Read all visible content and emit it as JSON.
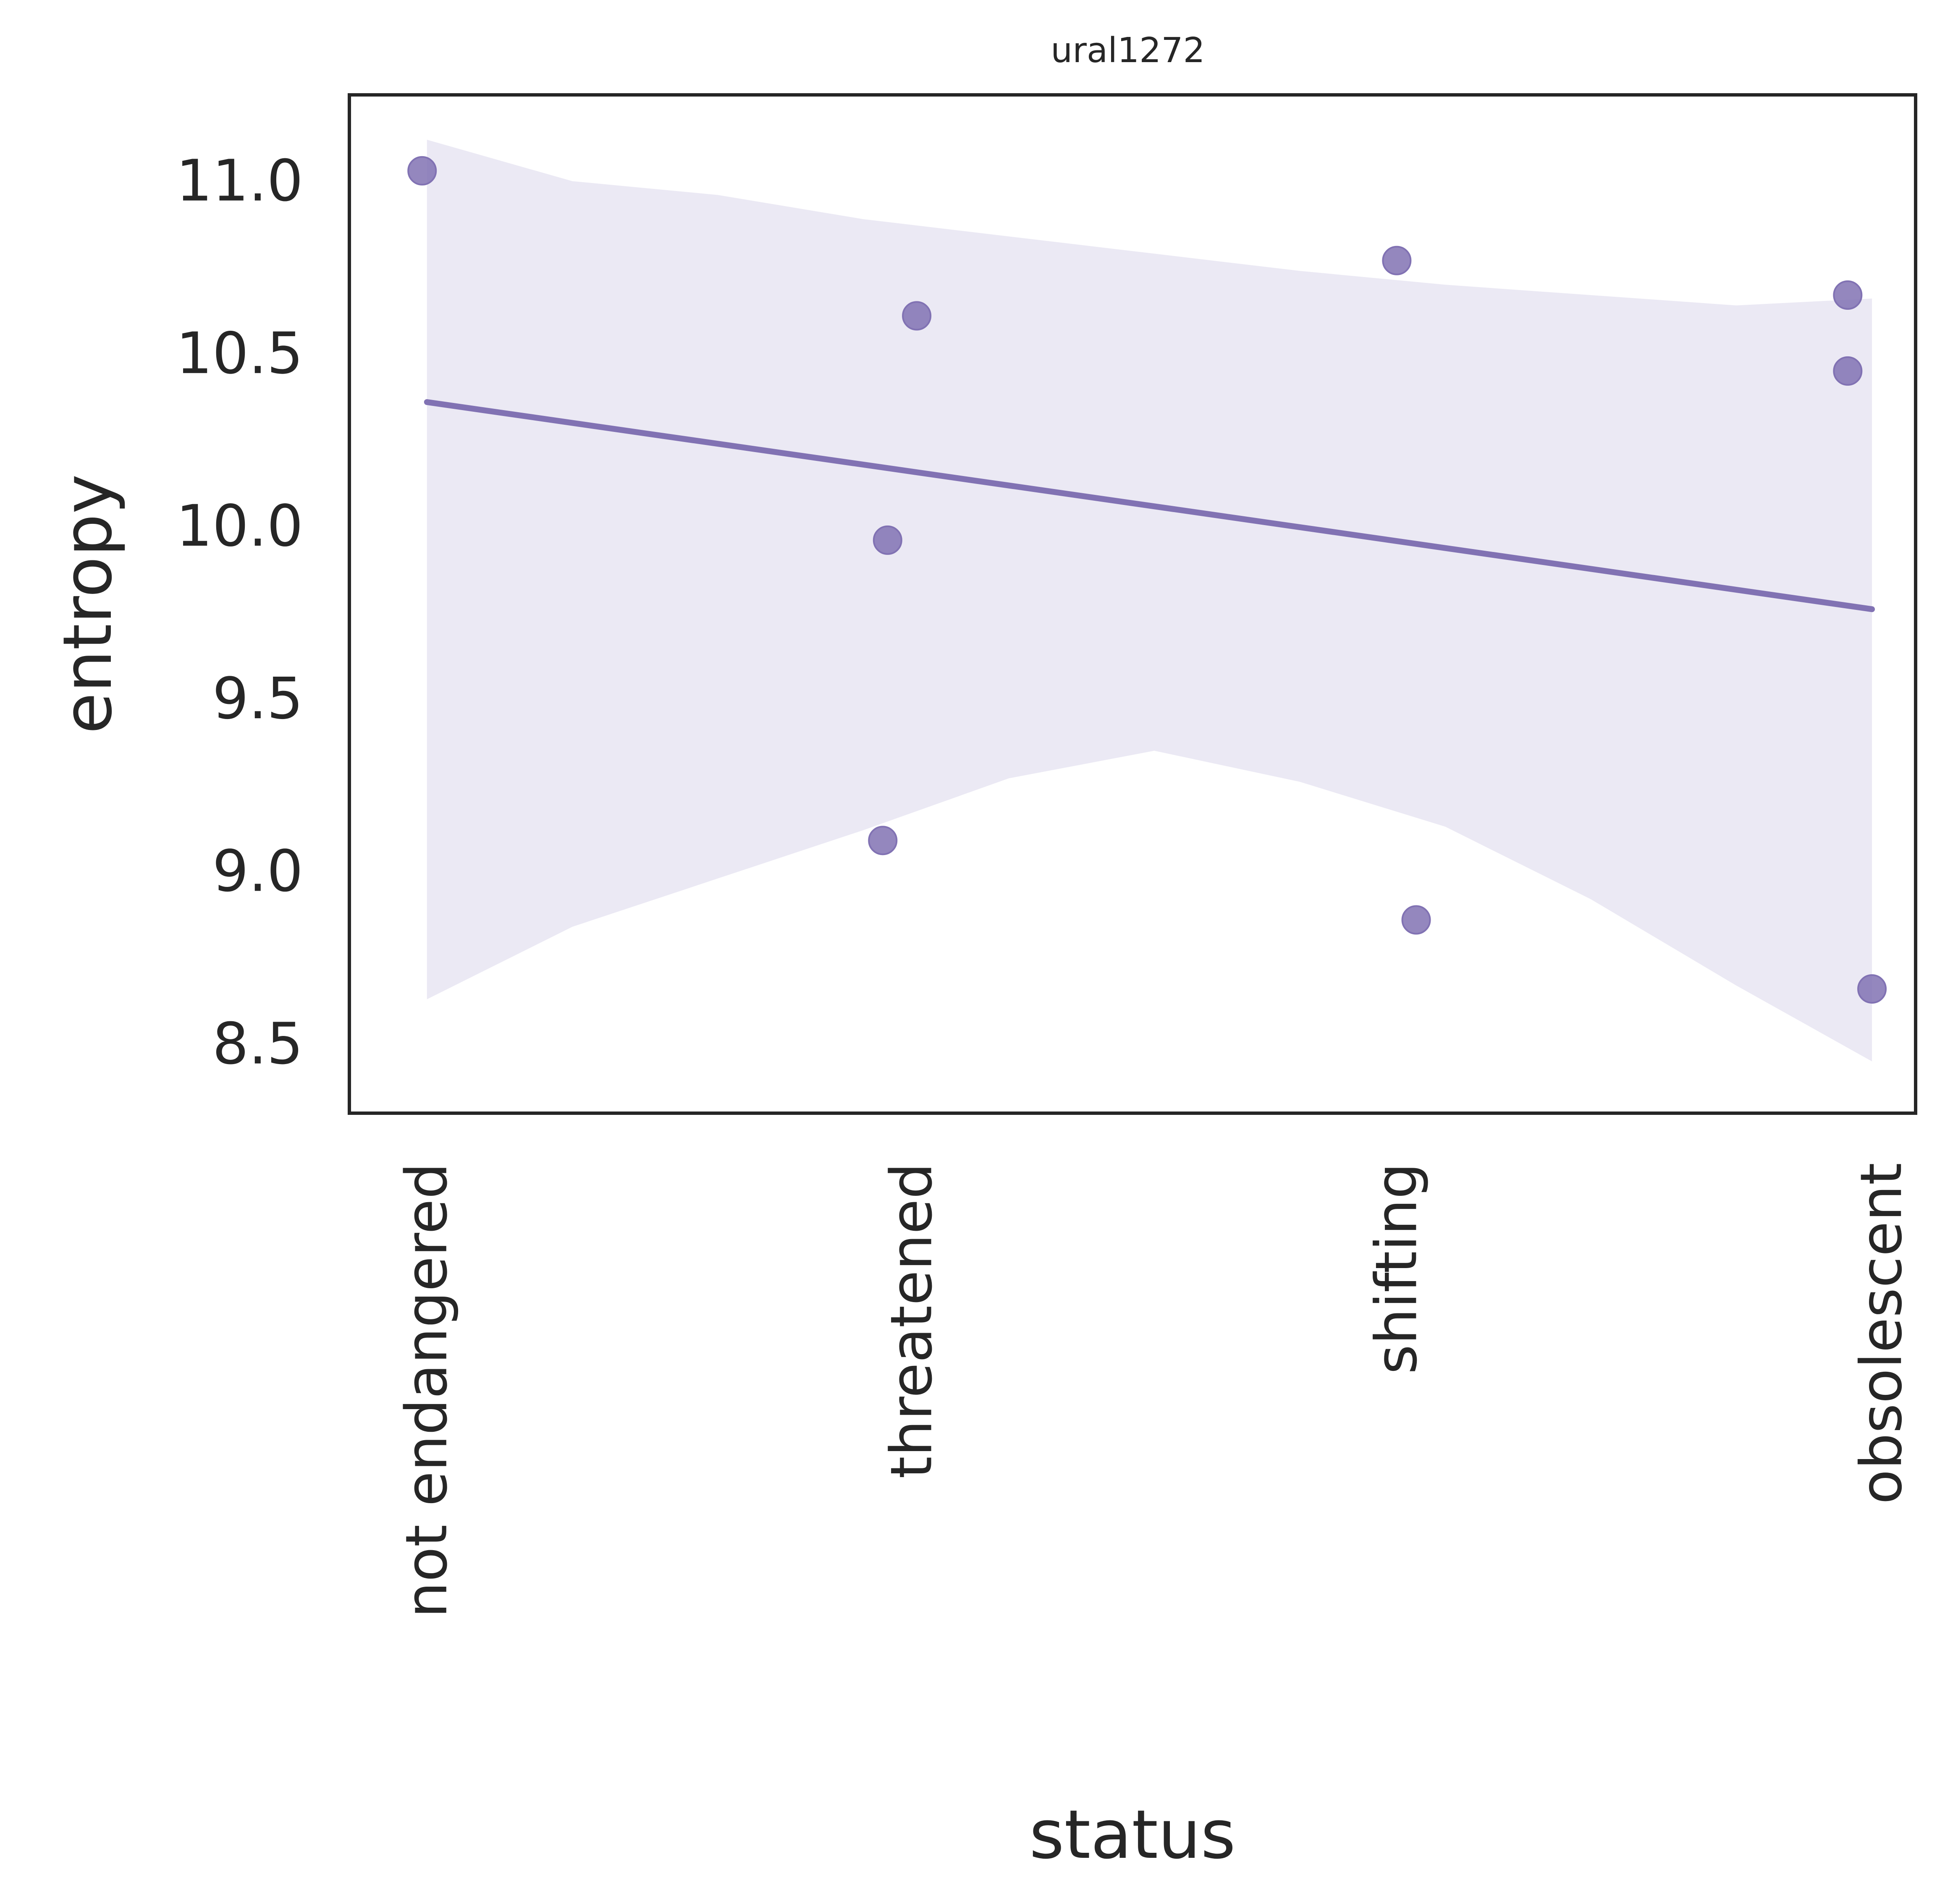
{
  "chart_data": {
    "type": "scatter",
    "title": "ural1272",
    "xlabel": "status",
    "ylabel": "entropy",
    "categories": [
      "not endangered",
      "threatened",
      "shifting",
      "obsolescent"
    ],
    "yticks": [
      "8.5",
      "9.0",
      "9.5",
      "10.0",
      "10.5",
      "11.0"
    ],
    "ylim": [
      8.3,
      11.25
    ],
    "xlim": [
      -0.16,
      3.07
    ],
    "grid": false,
    "color": "#8172b3",
    "band_color": "#ebe9f4",
    "points": [
      {
        "x": -0.01,
        "y": 11.03
      },
      {
        "x": 1.01,
        "y": 10.61
      },
      {
        "x": 0.95,
        "y": 9.96
      },
      {
        "x": 0.94,
        "y": 9.09
      },
      {
        "x": 2.0,
        "y": 10.77
      },
      {
        "x": 2.04,
        "y": 8.86
      },
      {
        "x": 2.93,
        "y": 10.67
      },
      {
        "x": 2.93,
        "y": 10.45
      },
      {
        "x": 2.98,
        "y": 8.66
      }
    ],
    "regression": {
      "x": [
        0.0,
        2.98
      ],
      "y": [
        10.36,
        9.76
      ]
    },
    "ci_band": {
      "x": [
        0.0,
        0.3,
        0.6,
        0.9,
        1.2,
        1.5,
        1.8,
        2.1,
        2.4,
        2.7,
        2.98
      ],
      "upper": [
        11.12,
        11.0,
        10.96,
        10.89,
        10.84,
        10.79,
        10.74,
        10.7,
        10.67,
        10.64,
        10.66
      ],
      "lower": [
        8.63,
        8.84,
        8.98,
        9.12,
        9.27,
        9.35,
        9.26,
        9.13,
        8.92,
        8.67,
        8.45
      ]
    }
  }
}
